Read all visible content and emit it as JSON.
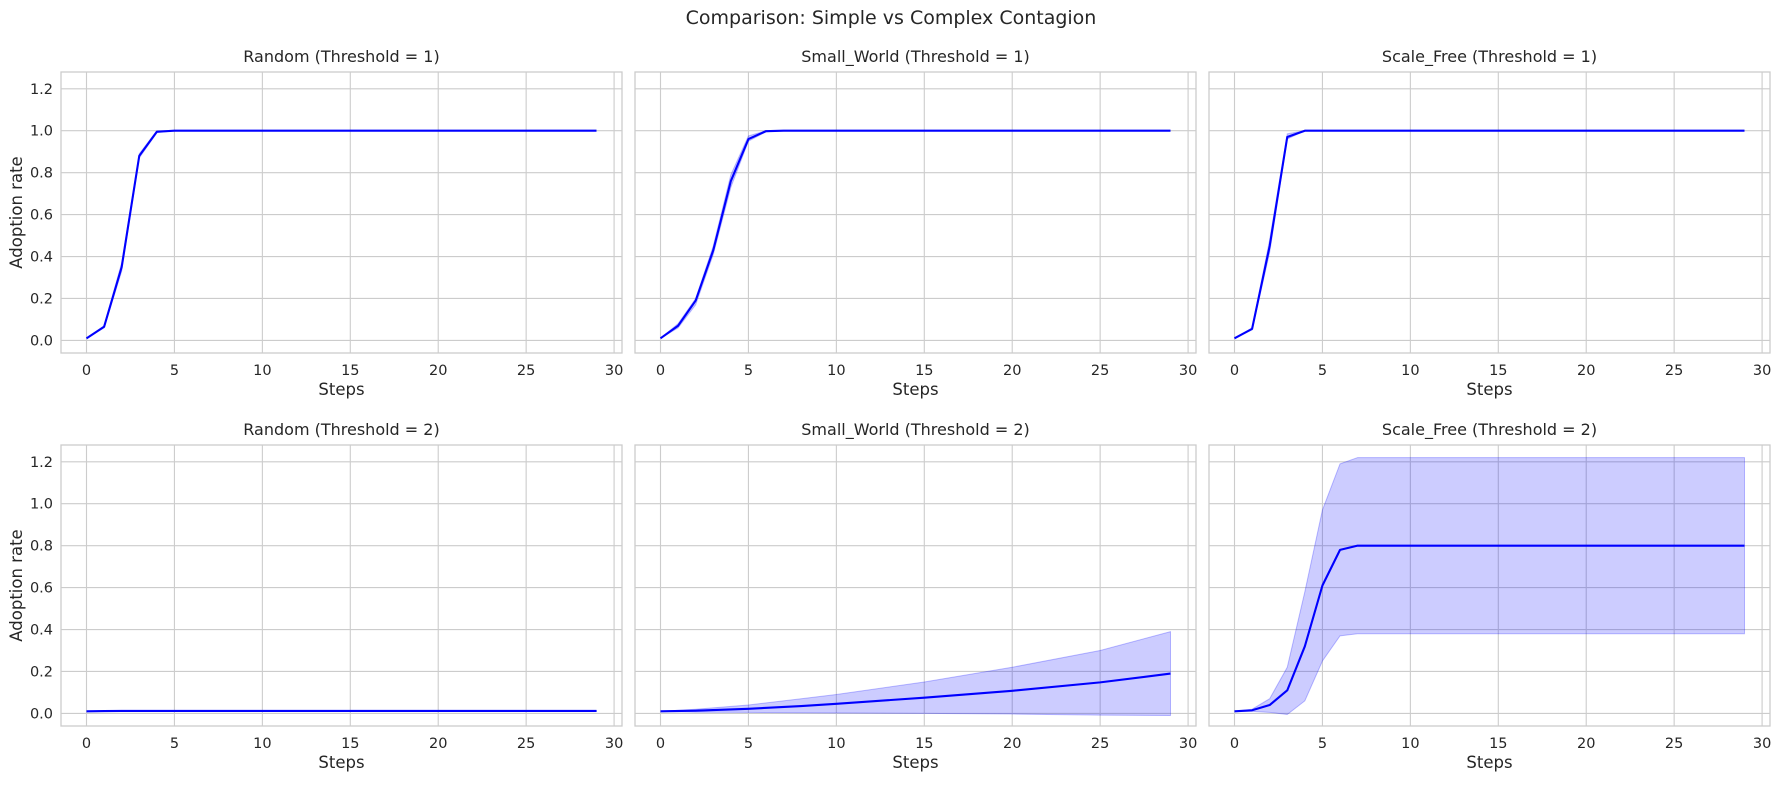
{
  "figure": {
    "title": "Comparison: Simple vs Complex Contagion",
    "colors": {
      "line": "#0000ff",
      "band": "#0000ff",
      "grid": "#cccccc",
      "text": "#262626",
      "background": "#ffffff"
    }
  },
  "chart_data": [
    {
      "type": "line",
      "title": "Random (Threshold = 1)",
      "xlabel": "Steps",
      "ylabel": "Adoption rate",
      "xlim": [
        -1.45,
        30.45
      ],
      "ylim": [
        -0.06,
        1.28
      ],
      "xticks": [
        0,
        5,
        10,
        15,
        20,
        25,
        30
      ],
      "yticks": [
        0.0,
        0.2,
        0.4,
        0.6,
        0.8,
        1.0,
        1.2
      ],
      "x": [
        0,
        1,
        2,
        3,
        4,
        5,
        29
      ],
      "mean": [
        0.01,
        0.065,
        0.35,
        0.88,
        0.995,
        1.0,
        1.0
      ],
      "lower": [
        0.01,
        0.06,
        0.33,
        0.87,
        0.99,
        1.0,
        1.0
      ],
      "upper": [
        0.01,
        0.07,
        0.37,
        0.89,
        1.0,
        1.0,
        1.0
      ]
    },
    {
      "type": "line",
      "title": "Small_World (Threshold = 1)",
      "xlabel": "Steps",
      "ylabel": "",
      "xlim": [
        -1.45,
        30.45
      ],
      "ylim": [
        -0.06,
        1.28
      ],
      "xticks": [
        0,
        5,
        10,
        15,
        20,
        25,
        30
      ],
      "yticks": [
        0.0,
        0.2,
        0.4,
        0.6,
        0.8,
        1.0,
        1.2
      ],
      "x": [
        0,
        1,
        2,
        3,
        4,
        5,
        6,
        7,
        29
      ],
      "mean": [
        0.01,
        0.07,
        0.19,
        0.43,
        0.76,
        0.96,
        0.998,
        1.0,
        1.0
      ],
      "lower": [
        0.01,
        0.06,
        0.17,
        0.41,
        0.73,
        0.95,
        0.995,
        1.0,
        1.0
      ],
      "upper": [
        0.01,
        0.08,
        0.2,
        0.45,
        0.79,
        0.975,
        1.0,
        1.0,
        1.0
      ]
    },
    {
      "type": "line",
      "title": "Scale_Free (Threshold = 1)",
      "xlabel": "Steps",
      "ylabel": "",
      "xlim": [
        -1.45,
        30.45
      ],
      "ylim": [
        -0.06,
        1.28
      ],
      "xticks": [
        0,
        5,
        10,
        15,
        20,
        25,
        30
      ],
      "yticks": [
        0.0,
        0.2,
        0.4,
        0.6,
        0.8,
        1.0,
        1.2
      ],
      "x": [
        0,
        1,
        2,
        3,
        4,
        5,
        29
      ],
      "mean": [
        0.01,
        0.055,
        0.45,
        0.97,
        1.0,
        1.0,
        1.0
      ],
      "lower": [
        0.01,
        0.05,
        0.42,
        0.96,
        1.0,
        1.0,
        1.0
      ],
      "upper": [
        0.01,
        0.06,
        0.48,
        0.985,
        1.0,
        1.0,
        1.0
      ]
    },
    {
      "type": "line",
      "title": "Random (Threshold = 2)",
      "xlabel": "Steps",
      "ylabel": "Adoption rate",
      "xlim": [
        -1.45,
        30.45
      ],
      "ylim": [
        -0.06,
        1.28
      ],
      "xticks": [
        0,
        5,
        10,
        15,
        20,
        25,
        30
      ],
      "yticks": [
        0.0,
        0.2,
        0.4,
        0.6,
        0.8,
        1.0,
        1.2
      ],
      "x": [
        0,
        1,
        2,
        3,
        29
      ],
      "mean": [
        0.01,
        0.011,
        0.012,
        0.012,
        0.012
      ],
      "lower": [
        0.01,
        0.01,
        0.01,
        0.01,
        0.01
      ],
      "upper": [
        0.01,
        0.013,
        0.014,
        0.014,
        0.014
      ]
    },
    {
      "type": "line",
      "title": "Small_World (Threshold = 2)",
      "xlabel": "Steps",
      "ylabel": "",
      "xlim": [
        -1.45,
        30.45
      ],
      "ylim": [
        -0.06,
        1.28
      ],
      "xticks": [
        0,
        5,
        10,
        15,
        20,
        25,
        30
      ],
      "yticks": [
        0.0,
        0.2,
        0.4,
        0.6,
        0.8,
        1.0,
        1.2
      ],
      "x": [
        0,
        2,
        5,
        8,
        10,
        15,
        20,
        25,
        29
      ],
      "mean": [
        0.01,
        0.013,
        0.022,
        0.035,
        0.046,
        0.075,
        0.108,
        0.148,
        0.19
      ],
      "lower": [
        0.01,
        0.006,
        0.005,
        0.003,
        0.002,
        0.0,
        -0.003,
        -0.008,
        -0.01
      ],
      "upper": [
        0.01,
        0.02,
        0.04,
        0.07,
        0.09,
        0.15,
        0.22,
        0.3,
        0.39
      ]
    },
    {
      "type": "line",
      "title": "Scale_Free (Threshold = 2)",
      "xlabel": "Steps",
      "ylabel": "",
      "xlim": [
        -1.45,
        30.45
      ],
      "ylim": [
        -0.06,
        1.28
      ],
      "xticks": [
        0,
        5,
        10,
        15,
        20,
        25,
        30
      ],
      "yticks": [
        0.0,
        0.2,
        0.4,
        0.6,
        0.8,
        1.0,
        1.2
      ],
      "x": [
        0,
        1,
        2,
        3,
        4,
        5,
        6,
        7,
        29
      ],
      "mean": [
        0.01,
        0.015,
        0.04,
        0.11,
        0.32,
        0.61,
        0.78,
        0.8,
        0.8
      ],
      "lower": [
        0.01,
        0.01,
        0.005,
        -0.005,
        0.06,
        0.25,
        0.37,
        0.38,
        0.38
      ],
      "upper": [
        0.01,
        0.02,
        0.07,
        0.22,
        0.58,
        0.97,
        1.19,
        1.22,
        1.22
      ]
    }
  ]
}
